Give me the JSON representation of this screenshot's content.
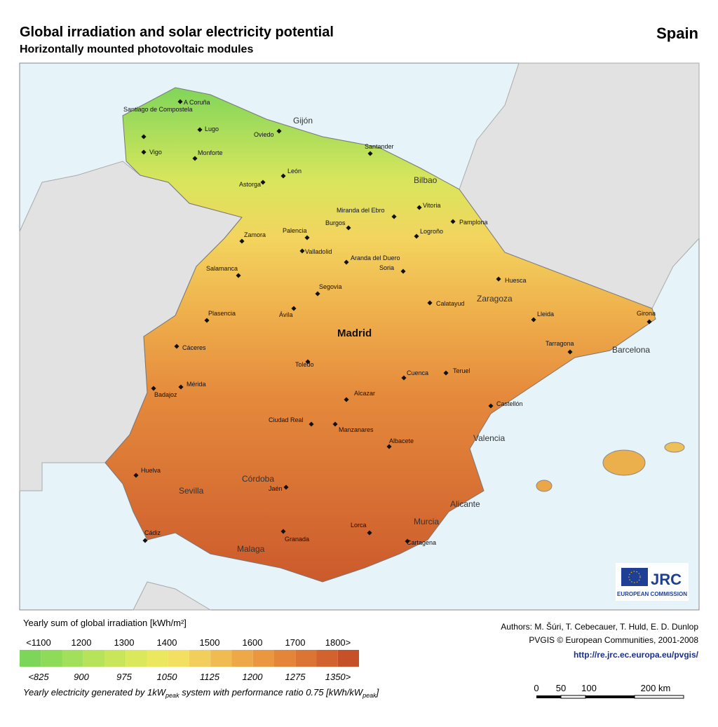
{
  "header": {
    "title": "Global irradiation and solar electricity potential",
    "subtitle": "Horizontally mounted photovoltaic modules",
    "country": "Spain"
  },
  "map": {
    "cities": [
      "A Coruña",
      "Santiago de Compostela",
      "Lugo",
      "Vigo",
      "Monforte",
      "Oviedo",
      "Santander",
      "León",
      "Astorga",
      "Vitoria",
      "Miranda del Ebro",
      "Pamplona",
      "Burgos",
      "Palencia",
      "Logroño",
      "Zamora",
      "Valladolid",
      "Aranda del Duero",
      "Soria",
      "Salamanca",
      "Huesca",
      "Segovia",
      "Calatayud",
      "Ávila",
      "Plasencia",
      "Lleida",
      "Girona",
      "Cáceres",
      "Tarragona",
      "Toledo",
      "Cuenca",
      "Teruel",
      "Mérida",
      "Badajoz",
      "Alcazar",
      "Castellón",
      "Ciudad Real",
      "Manzanares",
      "Albacete",
      "Huelva",
      "Jaén",
      "Lorca",
      "Granada",
      "Cádiz",
      "Cartagena"
    ],
    "major_cities": [
      "Gijón",
      "Bilbao",
      "Zaragoza",
      "Madrid",
      "Barcelona",
      "Valencia",
      "Alicante",
      "Murcia",
      "Córdoba",
      "Sevilla",
      "Malaga"
    ]
  },
  "legend": {
    "irradiation_title": "Yearly sum of global irradiation [kWh/m²]",
    "irradiation_labels": [
      "<1100",
      "1200",
      "1300",
      "1400",
      "1500",
      "1600",
      "1700",
      "1800>"
    ],
    "electricity_labels": [
      "<825",
      "900",
      "975",
      "1050",
      "1125",
      "1200",
      "1275",
      "1350>"
    ],
    "electricity_title": [
      "Yearly electricity generated by 1kW",
      "peak",
      " system with performance ratio 0.75 [kWh/kW",
      "peak",
      "]"
    ],
    "colors": [
      "#7dd65a",
      "#8edb5a",
      "#a2df5a",
      "#b6e35a",
      "#c9e65a",
      "#dbe85c",
      "#ebe860",
      "#f3e062",
      "#f2cf5c",
      "#f0bc52",
      "#eea848",
      "#ea9740",
      "#e4853a",
      "#dc7434",
      "#d2622e",
      "#c65028"
    ]
  },
  "credits": {
    "authors": "Authors: M. Šúri, T. Cebecauer, T. Huld, E. D. Dunlop",
    "copyright": "PVGIS © European Communities, 2001-2008",
    "url": "http://re.jrc.ec.europa.eu/pvgis/"
  },
  "scale_bar": [
    "0",
    "50",
    "100",
    "200 km"
  ],
  "logo": {
    "name": "JRC",
    "org": "EUROPEAN COMMISSION"
  }
}
